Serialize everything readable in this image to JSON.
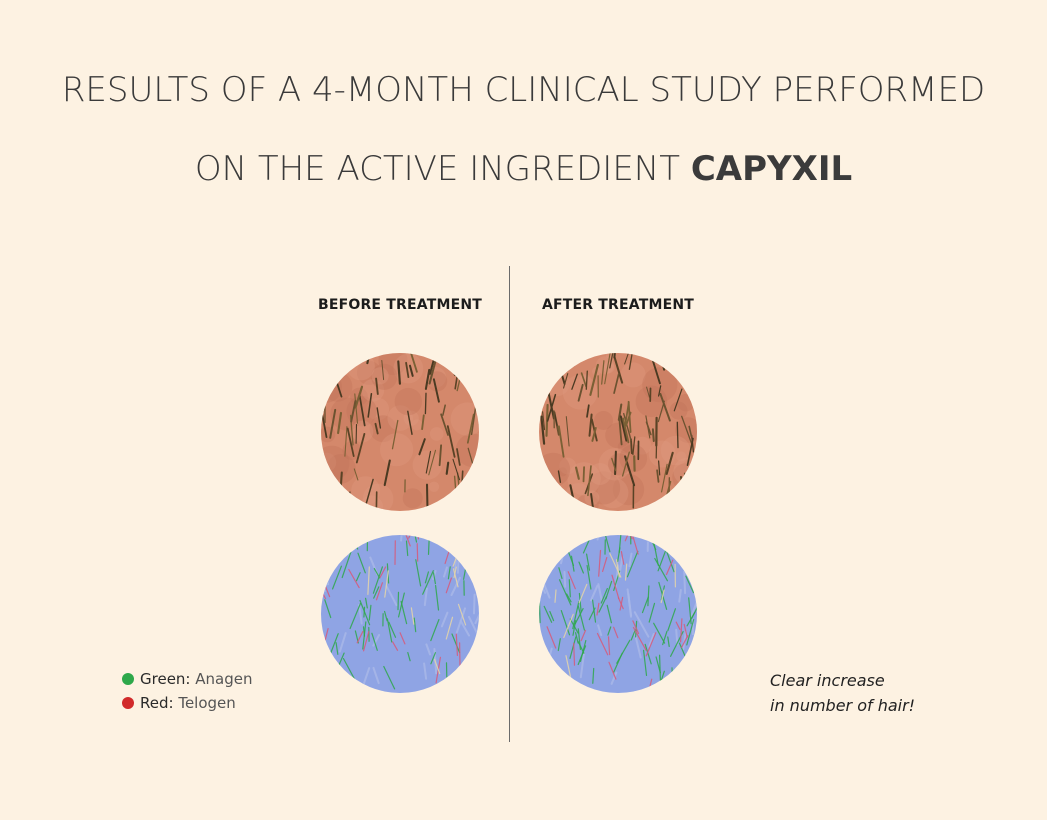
{
  "headline": {
    "line1": "RESULTS OF A 4-MONTH CLINICAL STUDY PERFORMED",
    "line2_prefix": "ON THE ACTIVE INGREDIENT ",
    "line2_bold": "CAPYXIL"
  },
  "columns": {
    "before_label": "BEFORE TREATMENT",
    "after_label": "AFTER TREATMENT"
  },
  "legend": {
    "items": [
      {
        "term": "Green:",
        "meaning": " Anagen",
        "color": "#2ea84a"
      },
      {
        "term": "Red:",
        "meaning": " Telogen",
        "color": "#d12a2a"
      }
    ]
  },
  "note": {
    "line1": "Clear increase",
    "line2": "in number of hair!"
  },
  "colors": {
    "background": "#fdf2e2",
    "scalp": "#d4886b",
    "analysis": "#8fa4e4",
    "anagen": "#2ea84a",
    "telogen": "#d12a2a"
  }
}
